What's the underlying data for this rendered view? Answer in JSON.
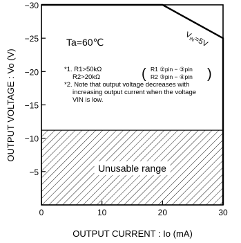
{
  "chart_data": {
    "type": "line",
    "xlabel": "OUTPUT  CURRENT : Io  (mA)",
    "ylabel": "OUTPUT VOLTAGE : Vo  (V)",
    "xlim": [
      0,
      30
    ],
    "ylim": [
      0,
      30
    ],
    "x_ticks": [
      0,
      10,
      20,
      30
    ],
    "y_ticks": [
      5,
      10,
      15,
      20,
      25,
      30
    ],
    "x_tick_labels": [
      "0",
      "10",
      "20",
      "30"
    ],
    "y_tick_labels": [
      "−5",
      "−10",
      "−15",
      "−20",
      "−25",
      "−30"
    ],
    "grid": false,
    "series": [
      {
        "name": "VIN=5V",
        "x": [
          0,
          20,
          30,
          30
        ],
        "y": [
          30,
          30,
          25,
          0
        ]
      }
    ],
    "unusable_region": {
      "label": "Unusable range",
      "x": [
        0,
        30
      ],
      "y": [
        0,
        11.2
      ]
    },
    "annotations": {
      "condition": "Ta=60℃",
      "series_label_main": "V",
      "series_label_sub": "IN",
      "series_label_tail": "=5V",
      "note1_line1": "*1. R1>50kΩ",
      "note1_line2": "R2>20kΩ",
      "pin_r1": "R1   ②pin − ③pin",
      "pin_r2": "R2   ③pin − ④pin",
      "note2_line1": "*2. Note that output voltage decreases with",
      "note2_line2": "increasing output current when the voltage",
      "note2_line3": "VIN is low."
    }
  }
}
